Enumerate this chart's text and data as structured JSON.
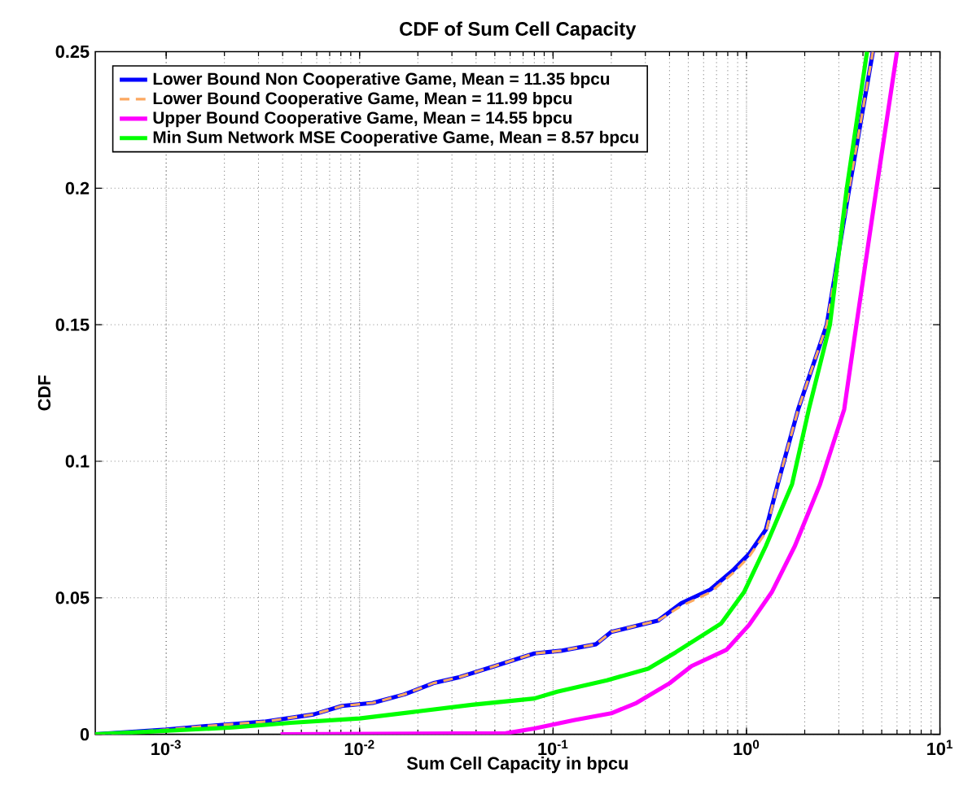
{
  "chart_data": {
    "type": "line",
    "title": "CDF of Sum Cell Capacity",
    "xlabel": "Sum Cell Capacity in bpcu",
    "ylabel": "CDF",
    "log": "x",
    "grid": true,
    "legend": "top left",
    "xlim": [
      0.00043,
      10
    ],
    "ylim": [
      0,
      0.25
    ],
    "xticks": [
      {
        "value": 0.001,
        "label": "10$^{-3}$"
      },
      {
        "value": 0.01,
        "label": "10$^{-2}$"
      },
      {
        "value": 0.1,
        "label": "10$^{-1}$"
      },
      {
        "value": 1,
        "label": "10$^{0}$"
      },
      {
        "value": 10,
        "label": "10$^{1}$"
      }
    ],
    "yticks": [
      0,
      0.05,
      0.1,
      0.15,
      0.2,
      0.25
    ],
    "series": [
      {
        "name": "Lower Bound Non Cooperative Game, Mean = 11.35 bpcu",
        "color": "#0000ff",
        "line_style": "solid",
        "x": [
          0.00043,
          0.001,
          0.0016,
          0.0032,
          0.0058,
          0.0081,
          0.0117,
          0.017,
          0.024,
          0.033,
          0.05,
          0.08,
          0.11,
          0.167,
          0.2,
          0.35,
          0.46,
          0.65,
          0.85,
          1.03,
          1.26,
          1.45,
          1.85,
          2.6,
          3.4,
          4.5
        ],
        "values": [
          0,
          0.0017,
          0.003,
          0.0046,
          0.0073,
          0.0104,
          0.0115,
          0.0146,
          0.0187,
          0.021,
          0.025,
          0.0296,
          0.0306,
          0.033,
          0.0375,
          0.0417,
          0.048,
          0.053,
          0.06,
          0.066,
          0.075,
          0.0916,
          0.119,
          0.15,
          0.2,
          0.25
        ]
      },
      {
        "name": "Lower Bound Cooperative Game, Mean = 11.99 bpcu",
        "color": "#fca860",
        "line_style": "dashed",
        "x": [
          0.00043,
          0.001,
          0.0016,
          0.0032,
          0.0058,
          0.0081,
          0.0117,
          0.017,
          0.024,
          0.033,
          0.05,
          0.08,
          0.11,
          0.167,
          0.2,
          0.35,
          0.46,
          0.65,
          0.85,
          1.03,
          1.26,
          1.45,
          1.85,
          2.6,
          3.4,
          4.5
        ],
        "values": [
          0,
          0.0017,
          0.003,
          0.0046,
          0.0073,
          0.0104,
          0.0115,
          0.0146,
          0.0187,
          0.021,
          0.025,
          0.0296,
          0.0306,
          0.033,
          0.0375,
          0.0417,
          0.047,
          0.052,
          0.059,
          0.065,
          0.074,
          0.0916,
          0.119,
          0.15,
          0.2,
          0.25
        ]
      },
      {
        "name": "Upper Bound Cooperative Game, Mean = 14.55 bpcu",
        "color": "#ff00ff",
        "line_style": "solid",
        "x": [
          0.0039,
          0.057,
          0.08,
          0.128,
          0.2,
          0.27,
          0.4,
          0.52,
          0.79,
          1.03,
          1.35,
          1.78,
          2.4,
          3.2,
          3.7,
          4.7,
          6.0
        ],
        "values": [
          0,
          0.0004,
          0.0021,
          0.0052,
          0.0077,
          0.0115,
          0.0187,
          0.025,
          0.031,
          0.04,
          0.052,
          0.069,
          0.0916,
          0.119,
          0.15,
          0.2,
          0.25
        ]
      },
      {
        "name": "Min Sum Network MSE Cooperative Game, Mean = 8.57 bpcu",
        "color": "#00ff00",
        "line_style": "solid",
        "x": [
          0.00043,
          0.0022,
          0.0044,
          0.01,
          0.0195,
          0.038,
          0.08,
          0.105,
          0.19,
          0.31,
          0.43,
          0.74,
          0.97,
          1.26,
          1.72,
          2.1,
          2.7,
          3.3,
          4.2
        ],
        "values": [
          0,
          0.0025,
          0.0042,
          0.0058,
          0.0083,
          0.0108,
          0.0131,
          0.0156,
          0.0198,
          0.024,
          0.03,
          0.0406,
          0.052,
          0.069,
          0.0916,
          0.119,
          0.15,
          0.2,
          0.25
        ]
      }
    ]
  }
}
